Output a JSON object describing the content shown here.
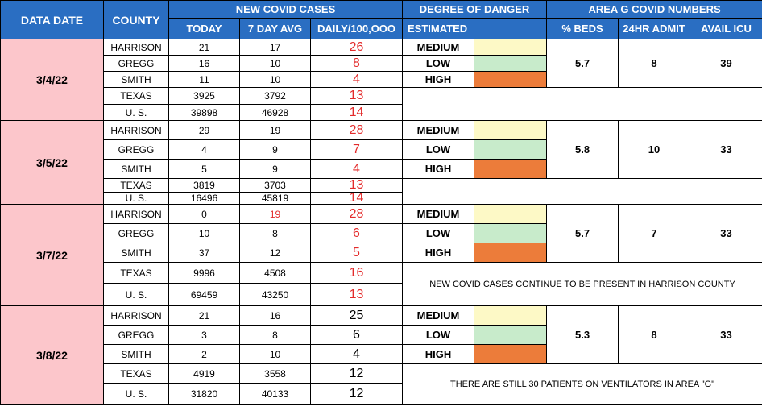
{
  "headers": {
    "data_date": "DATA DATE",
    "county": "COUNTY",
    "new_covid_cases": "NEW COVID CASES",
    "degree_of_danger": "DEGREE OF DANGER",
    "area_g": "AREA G COVID NUMBERS",
    "today": "TODAY",
    "avg7": "7 DAY AVG",
    "daily": "DAILY/100,OOO",
    "estimated": "ESTIMATED",
    "beds": "% BEDS",
    "admit": "24HR ADMIT",
    "icu": "AVAIL ICU"
  },
  "colors": {
    "header_bg": "#2a6ec2",
    "date_bg": "#fcc6cb",
    "medium": "#fdf9c6",
    "low": "#c8ebcb",
    "high": "#ec7c3a",
    "daily_red": "#e32b2b"
  },
  "blocks": [
    {
      "date": "3/4/22",
      "rows": [
        {
          "county": "HARRISON",
          "today": "21",
          "avg7": "17",
          "daily": "26"
        },
        {
          "county": "GREGG",
          "today": "16",
          "avg7": "10",
          "daily": "8"
        },
        {
          "county": "SMITH",
          "today": "11",
          "avg7": "10",
          "daily": "4"
        },
        {
          "county": "TEXAS",
          "today": "3925",
          "avg7": "3792",
          "daily": "13"
        },
        {
          "county": "U. S.",
          "today": "39898",
          "avg7": "46928",
          "daily": "14"
        }
      ],
      "danger": [
        "MEDIUM",
        "LOW",
        "HIGH"
      ],
      "area": {
        "beds": "5.7",
        "admit": "8",
        "icu": "39"
      },
      "note": ""
    },
    {
      "date": "3/5/22",
      "rows": [
        {
          "county": "HARRISON",
          "today": "29",
          "avg7": "19",
          "daily": "28"
        },
        {
          "county": "GREGG",
          "today": "4",
          "avg7": "9",
          "daily": "7"
        },
        {
          "county": "SMITH",
          "today": "5",
          "avg7": "9",
          "daily": "4"
        },
        {
          "county": "TEXAS",
          "today": "3819",
          "avg7": "3703",
          "daily": "13"
        },
        {
          "county": "U. S.",
          "today": "16496",
          "avg7": "45819",
          "daily": "14"
        }
      ],
      "danger": [
        "MEDIUM",
        "LOW",
        "HIGH"
      ],
      "area": {
        "beds": "5.8",
        "admit": "10",
        "icu": "33"
      },
      "note": ""
    },
    {
      "date": "3/7/22",
      "rows": [
        {
          "county": "HARRISON",
          "today": "0",
          "avg7": "19",
          "daily": "28"
        },
        {
          "county": "GREGG",
          "today": "10",
          "avg7": "8",
          "daily": "6"
        },
        {
          "county": "SMITH",
          "today": "37",
          "avg7": "12",
          "daily": "5"
        },
        {
          "county": "TEXAS",
          "today": "9996",
          "avg7": "4508",
          "daily": "16"
        },
        {
          "county": "U. S.",
          "today": "69459",
          "avg7": "43250",
          "daily": "13"
        }
      ],
      "danger": [
        "MEDIUM",
        "LOW",
        "HIGH"
      ],
      "area": {
        "beds": "5.7",
        "admit": "7",
        "icu": "33"
      },
      "note": "NEW COVID CASES CONTINUE TO BE PRESENT IN HARRISON COUNTY"
    },
    {
      "date": "3/8/22",
      "rows": [
        {
          "county": "HARRISON",
          "today": "21",
          "avg7": "16",
          "daily": "25"
        },
        {
          "county": "GREGG",
          "today": "3",
          "avg7": "8",
          "daily": "6"
        },
        {
          "county": "SMITH",
          "today": "2",
          "avg7": "10",
          "daily": "4"
        },
        {
          "county": "TEXAS",
          "today": "4919",
          "avg7": "3558",
          "daily": "12"
        },
        {
          "county": "U. S.",
          "today": "31820",
          "avg7": "40133",
          "daily": "12"
        }
      ],
      "danger": [
        "MEDIUM",
        "LOW",
        "HIGH"
      ],
      "area": {
        "beds": "5.3",
        "admit": "8",
        "icu": "33"
      },
      "note": "THERE ARE STILL 30 PATIENTS ON VENTILATORS IN AREA \"G\""
    }
  ]
}
